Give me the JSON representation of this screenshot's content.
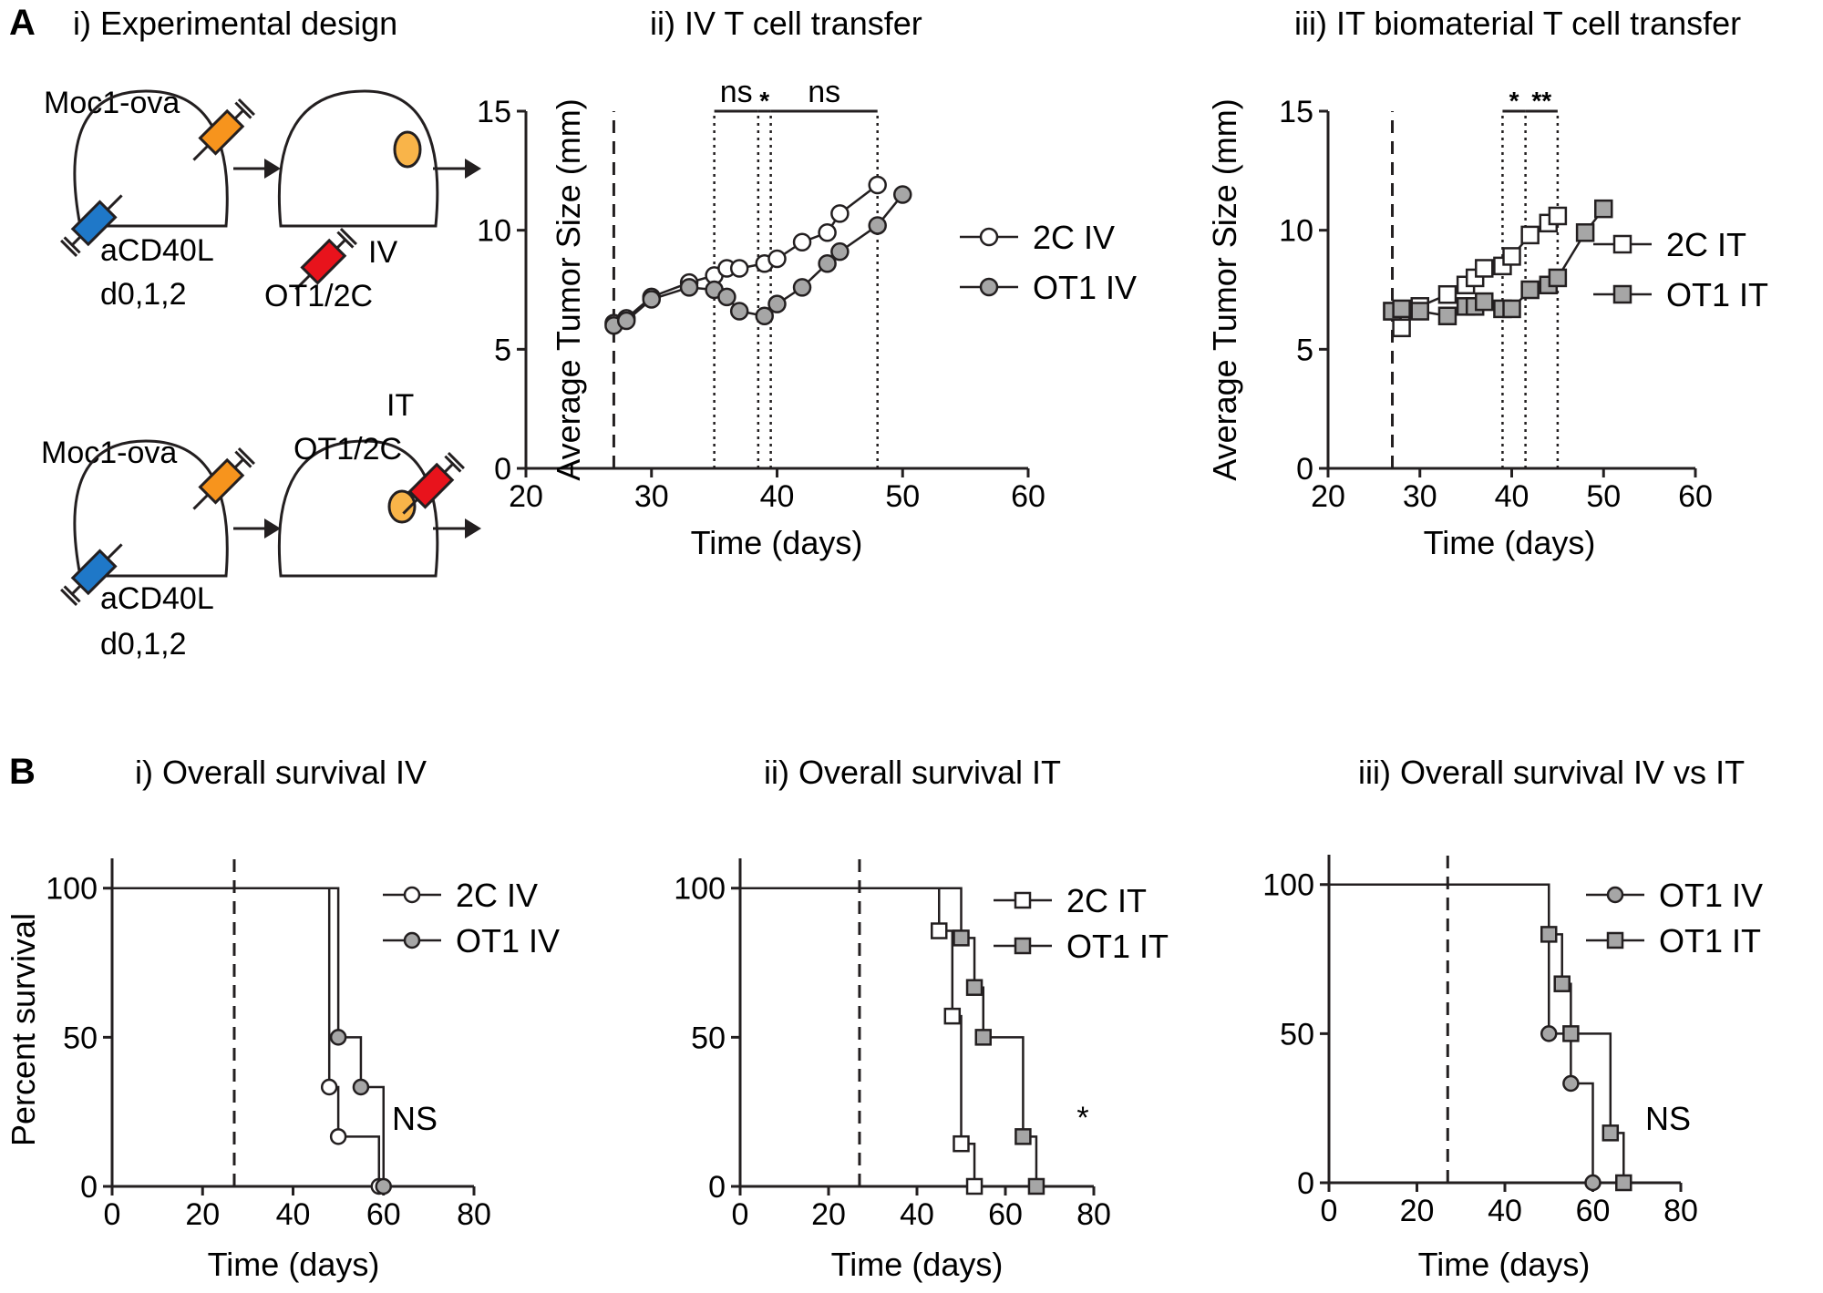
{
  "panel_A": {
    "label": "A",
    "design": {
      "title": "i) Experimental design",
      "iv_row": {
        "tumor": "Moc1-ova",
        "antibody": "aCD40L",
        "dosing": "d0,1,2",
        "route": "IV",
        "cells": "OT1/2C"
      },
      "it_row": {
        "tumor": "Moc1-ova",
        "antibody": "aCD40L",
        "dosing": "d0,1,2",
        "route": "IT",
        "cells": "OT1/2C"
      },
      "colors": {
        "tumor_syringe": "#f7941d",
        "antibody_syringe": "#1f78c8",
        "tcell_syringe": "#e8131c",
        "tumor": "#f9b449"
      }
    }
  },
  "panel_B": {
    "label": "B"
  },
  "chart_data": [
    {
      "id": "A-ii",
      "type": "line",
      "title": "ii) IV T cell transfer",
      "xlabel": "Time (days)",
      "ylabel": "Average Tumor Size (mm)",
      "xlim": [
        20,
        60
      ],
      "ylim": [
        0,
        15
      ],
      "xticks": [
        20,
        30,
        40,
        50,
        60
      ],
      "yticks": [
        0,
        5,
        10,
        15
      ],
      "treatment_day": 27,
      "dotted_days": [
        35,
        38.5,
        39.5,
        48
      ],
      "significance": [
        {
          "label": "ns",
          "from": 35,
          "to": 38.5
        },
        {
          "label": "*",
          "from": 38.5,
          "to": 39.5
        },
        {
          "label": "ns",
          "from": 39.5,
          "to": 48
        }
      ],
      "series": [
        {
          "name": "2C IV",
          "marker": "circle",
          "fill": "#ffffff",
          "x": [
            27,
            28,
            30,
            33,
            35,
            36,
            37,
            39,
            40,
            42,
            44,
            45,
            48
          ],
          "y": [
            6.1,
            6.3,
            7.2,
            7.8,
            8.1,
            8.4,
            8.4,
            8.6,
            8.8,
            9.5,
            9.9,
            10.7,
            11.9
          ]
        },
        {
          "name": "OT1 IV",
          "marker": "circle",
          "fill": "#a6a6a6",
          "x": [
            27,
            28,
            30,
            33,
            35,
            36,
            37,
            39,
            40,
            42,
            44,
            45,
            48,
            50
          ],
          "y": [
            6.0,
            6.2,
            7.1,
            7.6,
            7.5,
            7.2,
            6.6,
            6.4,
            6.9,
            7.6,
            8.6,
            9.1,
            10.2,
            11.5
          ]
        }
      ]
    },
    {
      "id": "A-iii",
      "type": "line",
      "title": "iii) IT biomaterial T cell transfer",
      "xlabel": "Time (days)",
      "ylabel": "Average Tumor Size (mm)",
      "xlim": [
        20,
        60
      ],
      "ylim": [
        0,
        15
      ],
      "xticks": [
        20,
        30,
        40,
        50,
        60
      ],
      "yticks": [
        0,
        5,
        10,
        15
      ],
      "treatment_day": 27,
      "dotted_days": [
        39,
        41.5,
        45
      ],
      "significance": [
        {
          "label": "*",
          "from": 39,
          "to": 41.5
        },
        {
          "label": "**",
          "from": 41.5,
          "to": 45
        }
      ],
      "series": [
        {
          "name": "2C IT",
          "marker": "square",
          "fill": "#ffffff",
          "x": [
            27,
            28,
            30,
            33,
            35,
            36,
            37,
            39,
            40,
            42,
            44,
            45
          ],
          "y": [
            6.6,
            5.9,
            6.8,
            7.3,
            7.7,
            8.0,
            8.4,
            8.5,
            8.9,
            9.8,
            10.3,
            10.6
          ]
        },
        {
          "name": "OT1 IT",
          "marker": "square",
          "fill": "#a6a6a6",
          "x": [
            27,
            28,
            30,
            33,
            35,
            36,
            37,
            39,
            40,
            42,
            44,
            45,
            48,
            50
          ],
          "y": [
            6.6,
            6.7,
            6.6,
            6.4,
            6.8,
            6.8,
            7.0,
            6.7,
            6.7,
            7.5,
            7.7,
            8.0,
            9.9,
            10.9
          ]
        }
      ]
    },
    {
      "id": "B-i",
      "type": "line",
      "title": "i) Overall survival IV",
      "xlabel": "Time (days)",
      "ylabel": "Percent survival",
      "xlim": [
        0,
        80
      ],
      "ylim": [
        0,
        110
      ],
      "xticks": [
        0,
        20,
        40,
        60,
        80
      ],
      "yticks": [
        0,
        50,
        100
      ],
      "treatment_day": 27,
      "annotation": "NS",
      "series": [
        {
          "name": "2C IV",
          "marker": "circle",
          "fill": "#ffffff",
          "steps": [
            [
              0,
              100
            ],
            [
              48,
              33.3
            ],
            [
              50,
              16.7
            ],
            [
              59,
              0
            ]
          ]
        },
        {
          "name": "OT1 IV",
          "marker": "circle",
          "fill": "#a6a6a6",
          "steps": [
            [
              0,
              100
            ],
            [
              50,
              50
            ],
            [
              55,
              33.3
            ],
            [
              60,
              0
            ]
          ]
        }
      ]
    },
    {
      "id": "B-ii",
      "type": "line",
      "title": "ii) Overall survival IT",
      "xlabel": "Time (days)",
      "ylabel": "",
      "xlim": [
        0,
        80
      ],
      "ylim": [
        0,
        110
      ],
      "xticks": [
        0,
        20,
        40,
        60,
        80
      ],
      "yticks": [
        0,
        50,
        100
      ],
      "treatment_day": 27,
      "annotation": "*",
      "series": [
        {
          "name": "2C IT",
          "marker": "square",
          "fill": "#ffffff",
          "steps": [
            [
              0,
              100
            ],
            [
              45,
              85.7
            ],
            [
              48,
              57.1
            ],
            [
              50,
              14.3
            ],
            [
              53,
              0
            ]
          ]
        },
        {
          "name": "OT1 IT",
          "marker": "square",
          "fill": "#a6a6a6",
          "steps": [
            [
              0,
              100
            ],
            [
              50,
              83.3
            ],
            [
              53,
              66.7
            ],
            [
              55,
              50
            ],
            [
              64,
              16.7
            ],
            [
              67,
              0
            ]
          ]
        }
      ]
    },
    {
      "id": "B-iii",
      "type": "line",
      "title": "iii) Overall survival IV vs IT",
      "xlabel": "Time (days)",
      "ylabel": "",
      "xlim": [
        0,
        80
      ],
      "ylim": [
        0,
        110
      ],
      "xticks": [
        0,
        20,
        40,
        60,
        80
      ],
      "yticks": [
        0,
        50,
        100
      ],
      "treatment_day": 27,
      "annotation": "NS",
      "series": [
        {
          "name": "OT1 IV",
          "marker": "circle",
          "fill": "#a6a6a6",
          "steps": [
            [
              0,
              100
            ],
            [
              50,
              50
            ],
            [
              55,
              33.3
            ],
            [
              60,
              0
            ]
          ]
        },
        {
          "name": "OT1 IT",
          "marker": "square",
          "fill": "#a6a6a6",
          "steps": [
            [
              0,
              100
            ],
            [
              50,
              83.3
            ],
            [
              53,
              66.7
            ],
            [
              55,
              50
            ],
            [
              64,
              16.7
            ],
            [
              67,
              0
            ]
          ]
        }
      ]
    }
  ]
}
